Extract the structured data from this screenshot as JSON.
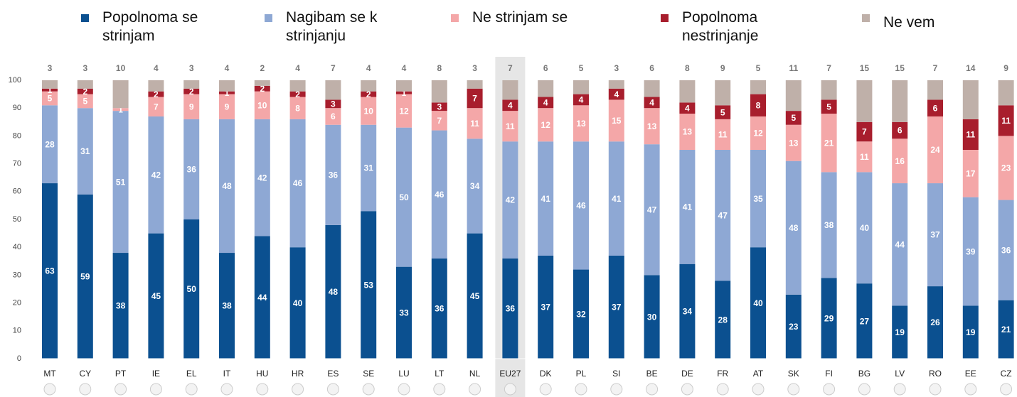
{
  "chart_data": {
    "type": "stacked_bar",
    "categories": [
      "MT",
      "CY",
      "PT",
      "IE",
      "EL",
      "IT",
      "HU",
      "HR",
      "ES",
      "SE",
      "LU",
      "LT",
      "NL",
      "EU27",
      "DK",
      "PL",
      "SI",
      "BE",
      "DE",
      "FR",
      "AT",
      "SK",
      "FI",
      "BG",
      "LV",
      "RO",
      "EE",
      "CZ"
    ],
    "highlight": "EU27",
    "series": [
      {
        "name": "Popolnoma se strinjam",
        "color": "#0b5090",
        "values": [
          63,
          59,
          38,
          45,
          50,
          38,
          44,
          40,
          48,
          53,
          33,
          36,
          45,
          36,
          37,
          32,
          37,
          30,
          34,
          28,
          40,
          23,
          29,
          27,
          19,
          26,
          19,
          21
        ]
      },
      {
        "name": "Nagibam se k strinjanju",
        "color": "#8ea8d4",
        "values": [
          28,
          31,
          51,
          42,
          36,
          48,
          42,
          46,
          36,
          31,
          50,
          46,
          34,
          42,
          41,
          46,
          41,
          47,
          41,
          47,
          35,
          48,
          38,
          40,
          44,
          37,
          39,
          36
        ]
      },
      {
        "name": "Ne strinjam se",
        "color": "#f4a7a8",
        "values": [
          5,
          5,
          1,
          7,
          9,
          9,
          10,
          8,
          6,
          10,
          12,
          7,
          11,
          11,
          12,
          13,
          15,
          13,
          13,
          11,
          12,
          13,
          21,
          11,
          16,
          24,
          17,
          23
        ]
      },
      {
        "name": "Popolnoma nestrinjanje",
        "color": "#a81e2d",
        "values": [
          1,
          2,
          null,
          2,
          2,
          1,
          2,
          2,
          3,
          2,
          1,
          3,
          7,
          4,
          4,
          4,
          4,
          4,
          4,
          5,
          8,
          5,
          5,
          7,
          6,
          6,
          11,
          11
        ]
      },
      {
        "name": "Ne vem",
        "color": "#bfb0a9",
        "values": [
          3,
          3,
          10,
          4,
          3,
          4,
          2,
          4,
          7,
          4,
          4,
          8,
          3,
          7,
          6,
          5,
          3,
          6,
          8,
          9,
          5,
          11,
          7,
          15,
          15,
          7,
          14,
          9
        ]
      }
    ],
    "ylim": [
      0,
      100
    ],
    "yticks": [
      0,
      10,
      20,
      30,
      40,
      50,
      60,
      70,
      80,
      90,
      100
    ]
  }
}
